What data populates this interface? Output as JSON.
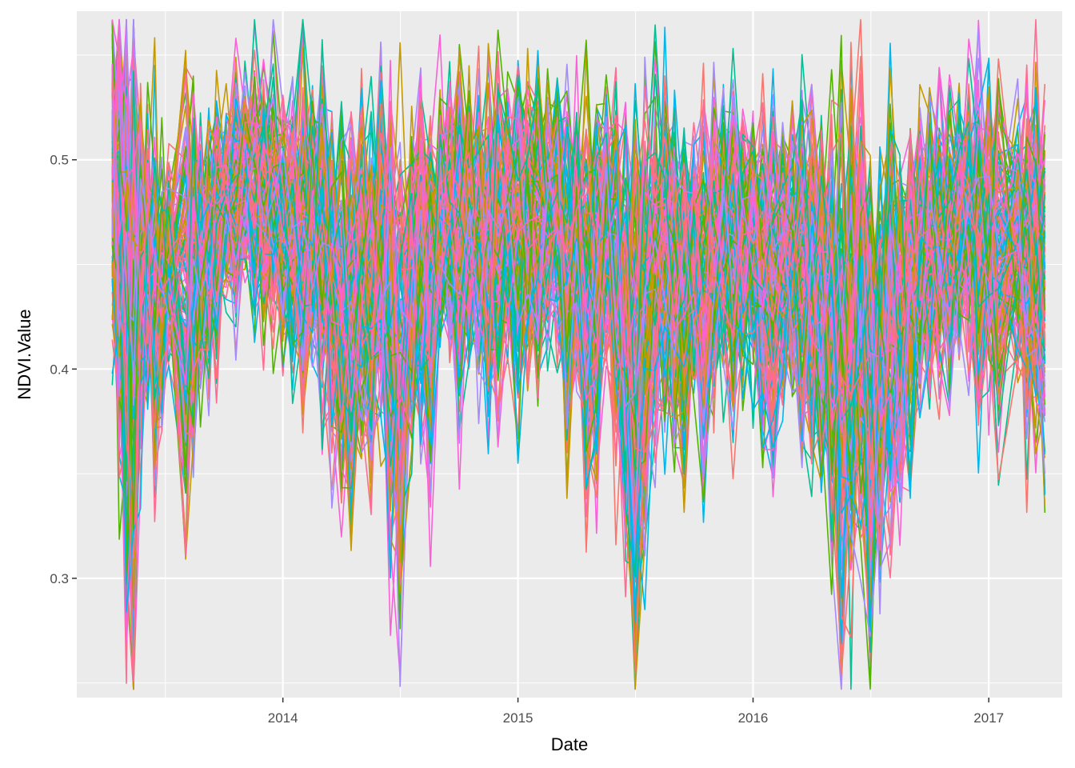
{
  "chart_data": {
    "type": "line",
    "title": "",
    "xlabel": "Date",
    "ylabel": "NDVI.Value",
    "xlim": [
      "2013-02-15",
      "2017-04-25"
    ],
    "ylim": [
      0.243,
      0.571
    ],
    "x_ticks": [
      "2014-01-01",
      "2015-01-01",
      "2016-01-01",
      "2017-01-01"
    ],
    "x_tick_labels": [
      "2014",
      "2015",
      "2016",
      "2017"
    ],
    "y_ticks": [
      0.3,
      0.4,
      0.5
    ],
    "y_tick_labels": [
      "0.3",
      "0.4",
      "0.5"
    ],
    "grid": true,
    "legend": "none",
    "palette": [
      "#F8766D",
      "#C49A00",
      "#53B400",
      "#00C094",
      "#00B6EB",
      "#A58AFF",
      "#FB61D7",
      "#FF6C91"
    ],
    "mean_profile": {
      "x": [
        "2013-04-11",
        "2013-04-22",
        "2013-05-03",
        "2013-05-14",
        "2013-05-25",
        "2013-06-05",
        "2013-06-16",
        "2013-06-27",
        "2013-07-08",
        "2013-08-03",
        "2013-08-15",
        "2013-08-26",
        "2013-09-08",
        "2013-09-20",
        "2013-10-05",
        "2013-10-20",
        "2013-11-03",
        "2013-11-18",
        "2013-12-02",
        "2013-12-17",
        "2014-01-01",
        "2014-01-16",
        "2014-02-01",
        "2014-02-16",
        "2014-03-03",
        "2014-03-18",
        "2014-04-02",
        "2014-04-17",
        "2014-05-03",
        "2014-05-18",
        "2014-06-02",
        "2014-06-17",
        "2014-07-02",
        "2014-07-20",
        "2014-08-03",
        "2014-08-18",
        "2014-09-02",
        "2014-09-17",
        "2014-10-02",
        "2014-10-17",
        "2014-11-01",
        "2014-11-16",
        "2014-12-01",
        "2014-12-16",
        "2015-01-01",
        "2015-01-16",
        "2015-02-01",
        "2015-02-16",
        "2015-03-03",
        "2015-03-18",
        "2015-04-02",
        "2015-04-17",
        "2015-05-03",
        "2015-05-18",
        "2015-06-02",
        "2015-06-17",
        "2015-07-02",
        "2015-07-17",
        "2015-08-02",
        "2015-08-17",
        "2015-09-01",
        "2015-09-16",
        "2015-10-01",
        "2015-10-16",
        "2015-11-01",
        "2015-11-16",
        "2015-12-01",
        "2015-12-16",
        "2016-01-01",
        "2016-01-16",
        "2016-02-01",
        "2016-02-16",
        "2016-03-02",
        "2016-03-17",
        "2016-04-01",
        "2016-04-16",
        "2016-05-02",
        "2016-05-17",
        "2016-06-01",
        "2016-06-16",
        "2016-07-01",
        "2016-07-16",
        "2016-08-01",
        "2016-08-16",
        "2016-09-01",
        "2016-09-16",
        "2016-10-01",
        "2016-10-16",
        "2016-11-01",
        "2016-11-16",
        "2016-12-01",
        "2016-12-16",
        "2017-01-01",
        "2017-01-16",
        "2017-02-15",
        "2017-03-01",
        "2017-03-15",
        "2017-03-29"
      ],
      "y": [
        0.5,
        0.46,
        0.42,
        0.4,
        0.44,
        0.45,
        0.43,
        0.44,
        0.45,
        0.43,
        0.44,
        0.45,
        0.46,
        0.47,
        0.48,
        0.48,
        0.49,
        0.49,
        0.48,
        0.48,
        0.47,
        0.47,
        0.46,
        0.47,
        0.46,
        0.44,
        0.43,
        0.42,
        0.44,
        0.43,
        0.45,
        0.42,
        0.39,
        0.44,
        0.45,
        0.44,
        0.47,
        0.47,
        0.46,
        0.47,
        0.47,
        0.46,
        0.46,
        0.47,
        0.46,
        0.47,
        0.46,
        0.47,
        0.47,
        0.45,
        0.46,
        0.43,
        0.44,
        0.47,
        0.45,
        0.42,
        0.39,
        0.41,
        0.45,
        0.45,
        0.44,
        0.43,
        0.45,
        0.44,
        0.45,
        0.46,
        0.45,
        0.46,
        0.46,
        0.45,
        0.44,
        0.45,
        0.45,
        0.44,
        0.44,
        0.43,
        0.42,
        0.4,
        0.41,
        0.42,
        0.38,
        0.4,
        0.42,
        0.43,
        0.44,
        0.45,
        0.46,
        0.46,
        0.46,
        0.47,
        0.47,
        0.46,
        0.47,
        0.45,
        0.46,
        0.45,
        0.45,
        0.44
      ],
      "spread": [
        0.04,
        0.05,
        0.07,
        0.08,
        0.04,
        0.03,
        0.04,
        0.03,
        0.02,
        0.05,
        0.04,
        0.03,
        0.03,
        0.03,
        0.02,
        0.03,
        0.02,
        0.03,
        0.03,
        0.03,
        0.03,
        0.03,
        0.04,
        0.03,
        0.04,
        0.04,
        0.04,
        0.05,
        0.04,
        0.04,
        0.04,
        0.05,
        0.06,
        0.04,
        0.04,
        0.04,
        0.03,
        0.03,
        0.04,
        0.03,
        0.03,
        0.04,
        0.04,
        0.03,
        0.04,
        0.03,
        0.04,
        0.03,
        0.03,
        0.04,
        0.03,
        0.05,
        0.04,
        0.03,
        0.04,
        0.05,
        0.06,
        0.05,
        0.04,
        0.04,
        0.04,
        0.04,
        0.03,
        0.04,
        0.03,
        0.03,
        0.04,
        0.03,
        0.03,
        0.04,
        0.04,
        0.03,
        0.03,
        0.04,
        0.04,
        0.04,
        0.05,
        0.06,
        0.05,
        0.05,
        0.06,
        0.05,
        0.05,
        0.04,
        0.04,
        0.03,
        0.03,
        0.03,
        0.03,
        0.03,
        0.03,
        0.04,
        0.03,
        0.04,
        0.03,
        0.04,
        0.04,
        0.04
      ]
    },
    "series_count": 160
  }
}
